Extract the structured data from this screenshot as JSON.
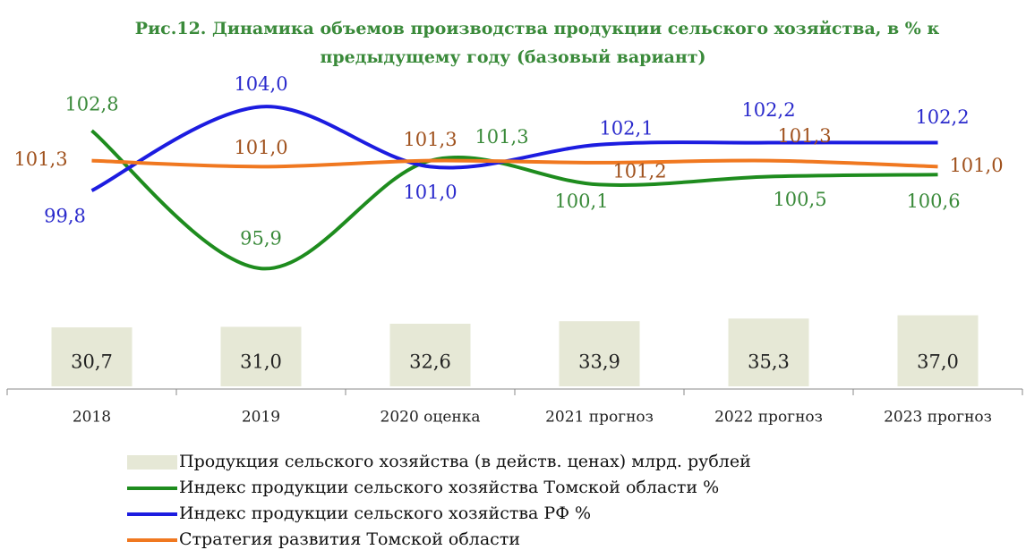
{
  "chart_data": {
    "type": "bar-line",
    "title": "Рис.12.  Динамика объемов производства продукции сельского хозяйства, в % к",
    "subtitle": "предыдущему году (базовый вариант)",
    "categories": [
      "2018",
      "2019",
      "2020 оценка",
      "2021 прогноз",
      "2022 прогноз",
      "2023 прогноз"
    ],
    "ylim": [
      0,
      156
    ],
    "y2lim": [
      90,
      105
    ],
    "series": [
      {
        "name": "Продукция сельского хозяйства (в действ. ценах) млрд. рублей",
        "type": "bar",
        "color": "#e6e8d6",
        "label_color": "#222222",
        "values": [
          30.7,
          31.0,
          32.6,
          33.9,
          35.3,
          37.0
        ],
        "value_labels": [
          "30,7",
          "31,0",
          "32,6",
          "33,9",
          "35,3",
          "37,0"
        ]
      },
      {
        "name": "Индекс продукции сельского хозяйства Томской области %",
        "type": "line",
        "axis": "y2",
        "color": "#1e8c1e",
        "label_color": "#3a8a3a",
        "values": [
          102.8,
          95.9,
          101.3,
          100.1,
          100.5,
          100.6
        ],
        "value_labels": [
          "102,8",
          "95,9",
          "101,3",
          "100,1",
          "100,5",
          "100,6"
        ]
      },
      {
        "name": "Индекс продукции сельского хозяйства РФ %",
        "type": "line",
        "axis": "y2",
        "color": "#1c1ce0",
        "label_color": "#2a2acc",
        "values": [
          99.8,
          104.0,
          101.0,
          102.1,
          102.2,
          102.2
        ],
        "value_labels": [
          "99,8",
          "104,0",
          "101,0",
          "102,1",
          "102,2",
          "102,2"
        ]
      },
      {
        "name": "Стратегия развития Томской области",
        "type": "line",
        "axis": "y2",
        "color": "#f07820",
        "label_color": "#a0521e",
        "values": [
          101.3,
          101.0,
          101.3,
          101.2,
          101.3,
          101.0
        ],
        "value_labels": [
          "101,3",
          "101,0",
          "101,3",
          "101,2",
          "101,3",
          "101,0"
        ]
      }
    ]
  }
}
